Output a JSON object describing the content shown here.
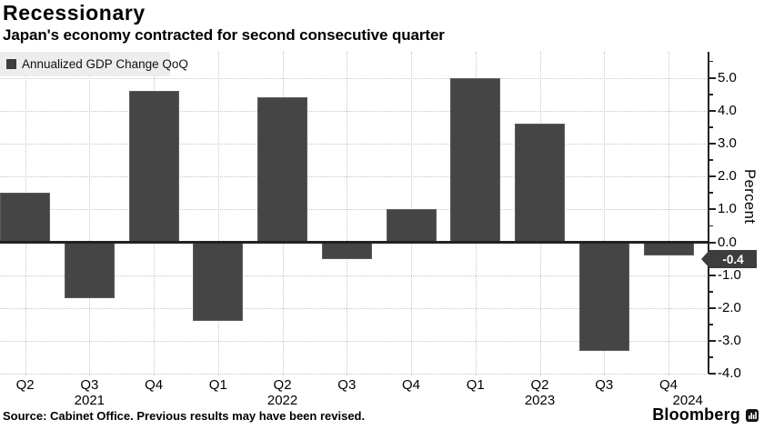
{
  "header": {
    "title": "Recessionary",
    "subtitle": "Japan's economy contracted for second consecutive quarter"
  },
  "legend": {
    "label": "Annualized GDP Change QoQ",
    "swatch_color": "#3d3d3d"
  },
  "chart_data": {
    "type": "bar",
    "categories": [
      "Q2 2021",
      "Q3 2021",
      "Q4 2021",
      "Q1 2022",
      "Q2 2022",
      "Q3 2022",
      "Q4 2022",
      "Q1 2023",
      "Q2 2023",
      "Q3 2023",
      "Q4 2023"
    ],
    "values": [
      1.5,
      -1.7,
      4.6,
      -2.4,
      4.4,
      -0.5,
      1.0,
      5.0,
      3.6,
      -3.3,
      -0.4
    ],
    "quarter_labels": [
      "Q2",
      "Q3",
      "Q4",
      "Q1",
      "Q2",
      "Q3",
      "Q4",
      "Q1",
      "Q2",
      "Q3",
      "Q4"
    ],
    "year_rows": [
      {
        "label": "2021",
        "slot": 1
      },
      {
        "label": "2022",
        "slot": 4
      },
      {
        "label": "2023",
        "slot": 8
      },
      {
        "label": "2024",
        "slot": 10.3
      }
    ],
    "title": "Recessionary",
    "xlabel": "",
    "ylabel": "Percent",
    "ylim": [
      -4.0,
      5.8
    ],
    "ytick_labels": [
      "5.0",
      "4.0",
      "3.0",
      "2.0",
      "1.0",
      "0.0",
      "-1.0",
      "-2.0",
      "-3.0",
      "-4.0"
    ],
    "yticks": [
      5,
      4,
      3,
      2,
      1,
      0,
      -1,
      -2,
      -3,
      -4
    ],
    "minor_tick_step": 0.5,
    "grid": true,
    "legend_position": "top-left",
    "axis_side": "right",
    "last_value_label": "-0.4",
    "bar_color": "#454545"
  },
  "footer": {
    "source": "Source: Cabinet Office. Previous results may have been revised.",
    "brand": "Bloomberg"
  }
}
